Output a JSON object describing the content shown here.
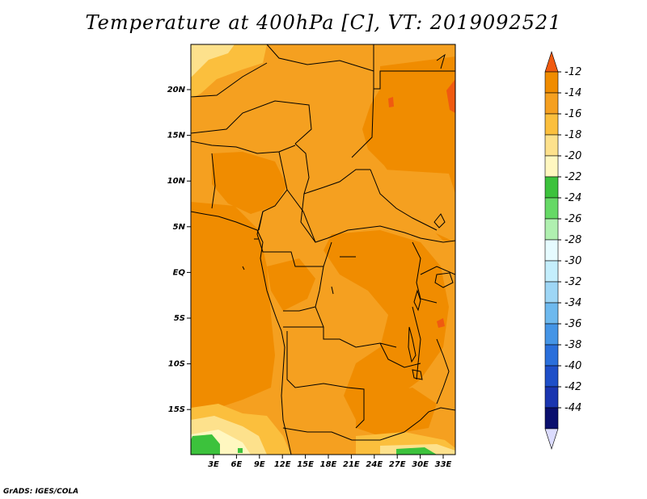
{
  "title": "Temperature at 400hPa [C], VT: 2019092521",
  "credit": "GrADS: IGES/COLA",
  "map": {
    "lat_ticks": [
      "20N",
      "15N",
      "10N",
      "5N",
      "EQ",
      "5S",
      "10S",
      "15S"
    ],
    "lon_ticks": [
      "3E",
      "6E",
      "9E",
      "12E",
      "15E",
      "18E",
      "21E",
      "24E",
      "27E",
      "30E",
      "33E"
    ]
  },
  "colorbar": {
    "labels": [
      "-12",
      "-14",
      "-16",
      "-18",
      "-20",
      "-22",
      "-24",
      "-26",
      "-28",
      "-30",
      "-32",
      "-34",
      "-36",
      "-38",
      "-40",
      "-42",
      "-44"
    ],
    "colors": [
      "#f05a10",
      "#f08c00",
      "#f5a020",
      "#fbbf3d",
      "#fde18c",
      "#fff7c0",
      "#3cc23c",
      "#66d966",
      "#b0f0b0",
      "#e6fbff",
      "#c4eefc",
      "#9ed6f5",
      "#6eb9ee",
      "#4595e6",
      "#2a6fdb",
      "#1e4fc8",
      "#1a35b0",
      "#0a0f6e",
      "#dcdcff"
    ]
  }
}
